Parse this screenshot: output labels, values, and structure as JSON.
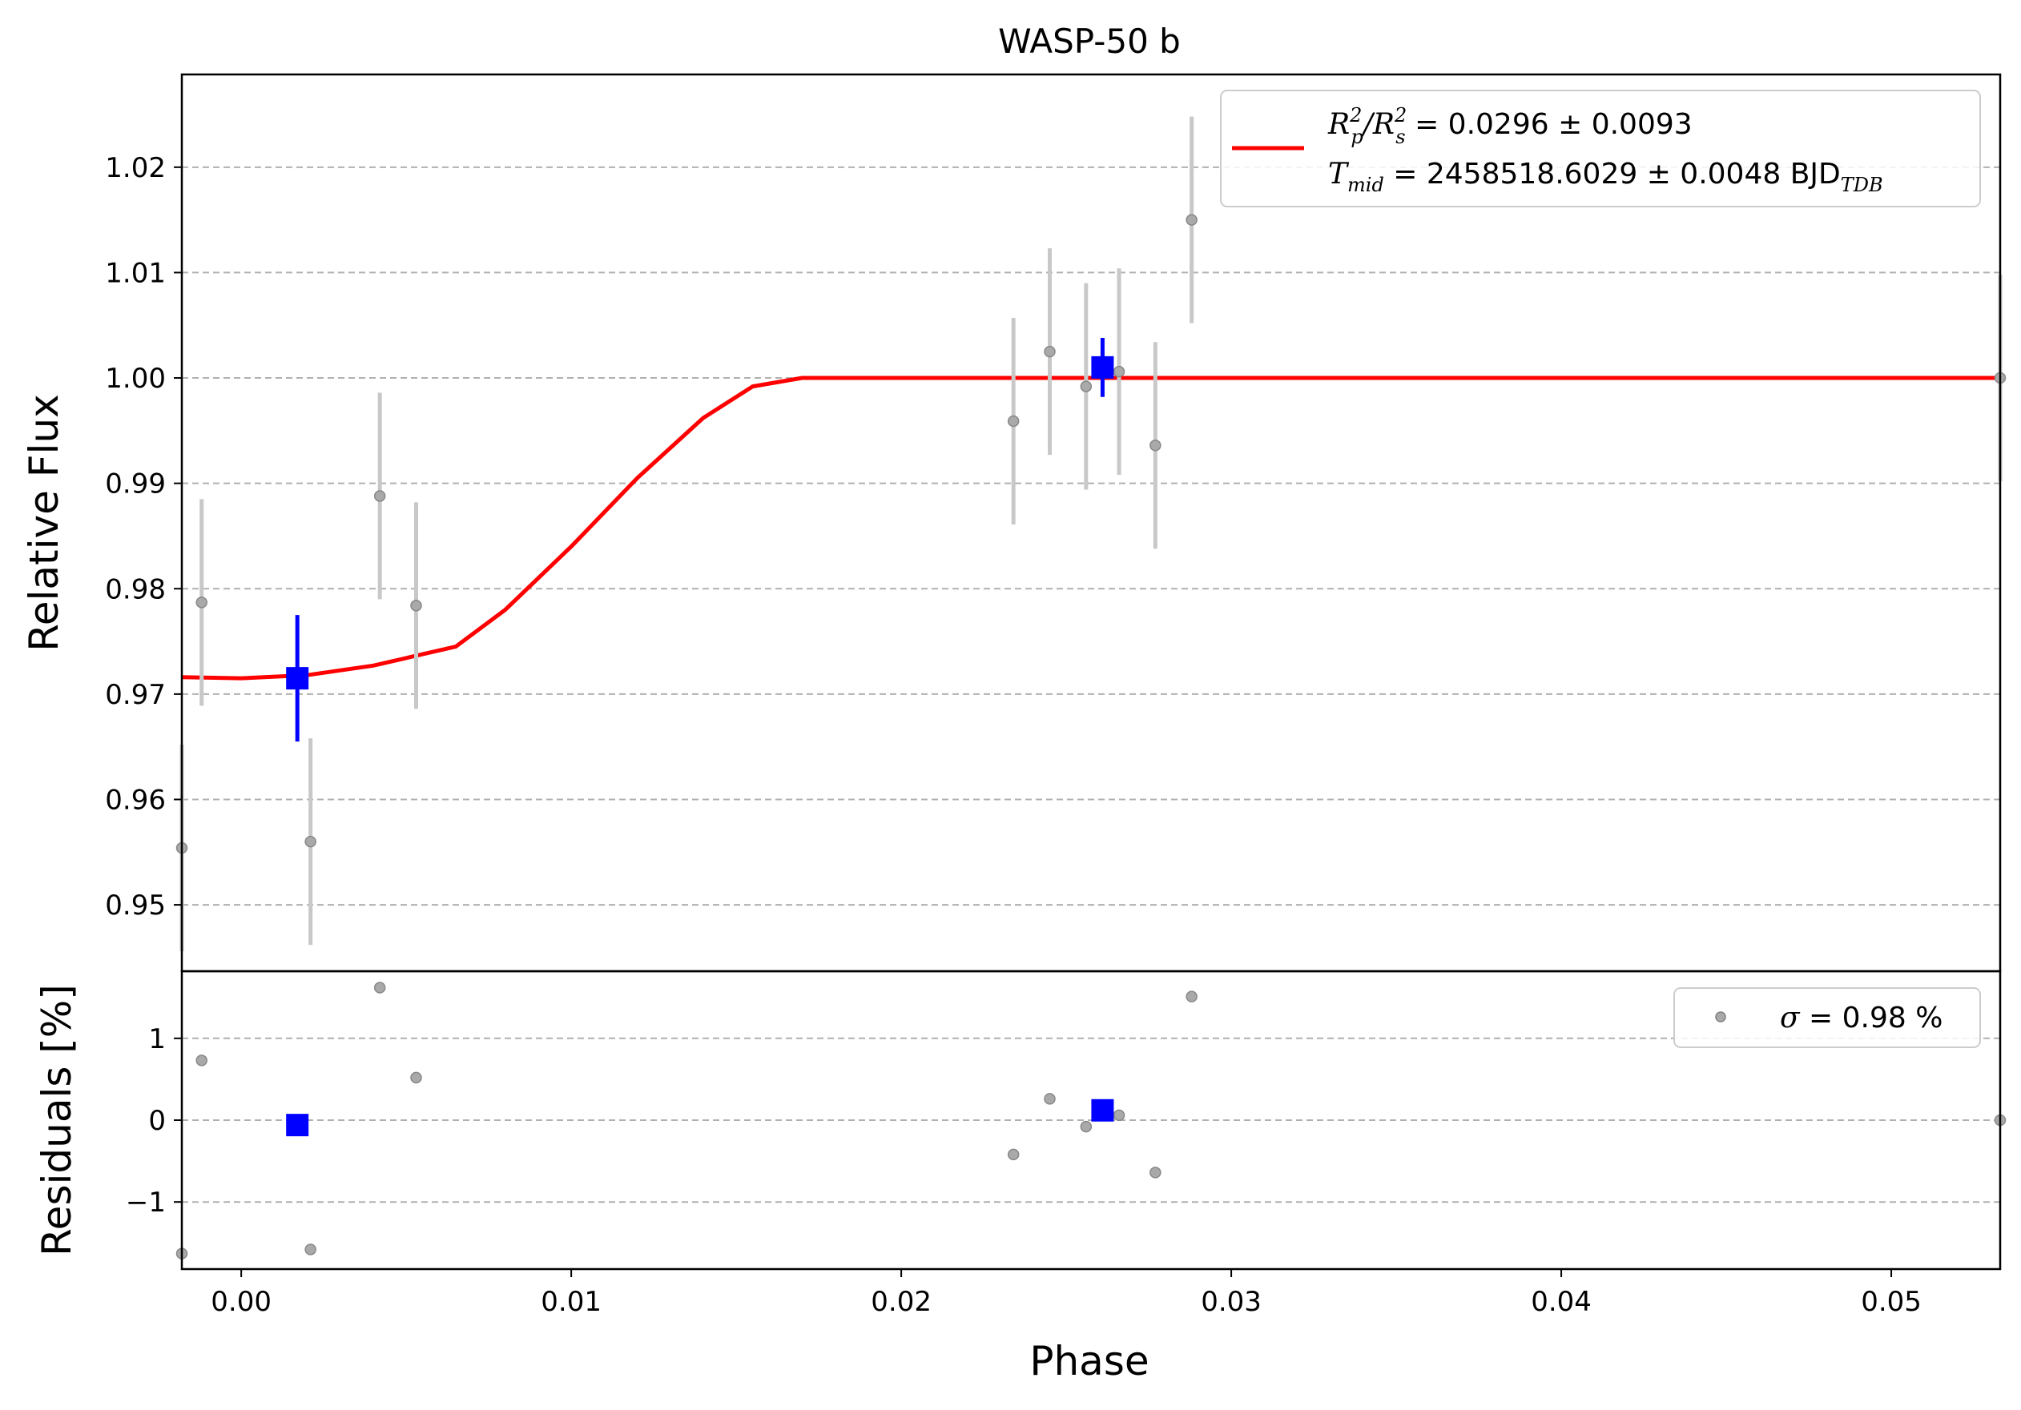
{
  "chart_data": [
    {
      "panel": "main",
      "type": "scatter",
      "title": "WASP-50 b",
      "xlabel": "Phase",
      "ylabel": "Relative Flux",
      "xlim": [
        -0.0018,
        0.0533
      ],
      "ylim": [
        0.9437,
        1.0288
      ],
      "grid": "horizontal dashed",
      "x_ticks": [
        "0.00",
        "0.01",
        "0.02",
        "0.03",
        "0.04",
        "0.05"
      ],
      "y_ticks": [
        {
          "v": 0.95,
          "label": "0.95"
        },
        {
          "v": 0.96,
          "label": "0.96"
        },
        {
          "v": 0.97,
          "label": "0.97"
        },
        {
          "v": 0.98,
          "label": "0.98"
        },
        {
          "v": 0.99,
          "label": "0.99"
        },
        {
          "v": 1.0,
          "label": "1.00"
        },
        {
          "v": 1.01,
          "label": "1.01"
        },
        {
          "v": 1.02,
          "label": "1.02"
        }
      ],
      "series": [
        {
          "kind": "unbinned",
          "color": "#a9a9a9",
          "points": [
            {
              "x": -0.0018,
              "y": 0.9554,
              "err": 0.0098
            },
            {
              "x": -0.0012,
              "y": 0.9787,
              "err": 0.0098
            },
            {
              "x": 0.0021,
              "y": 0.956,
              "err": 0.0098
            },
            {
              "x": 0.0042,
              "y": 0.9888,
              "err": 0.0098
            },
            {
              "x": 0.0053,
              "y": 0.9784,
              "err": 0.0098
            },
            {
              "x": 0.0234,
              "y": 0.9959,
              "err": 0.0098
            },
            {
              "x": 0.0245,
              "y": 1.0025,
              "err": 0.0098
            },
            {
              "x": 0.0256,
              "y": 0.9992,
              "err": 0.0098
            },
            {
              "x": 0.0266,
              "y": 1.0006,
              "err": 0.0098
            },
            {
              "x": 0.0277,
              "y": 0.9936,
              "err": 0.0098
            },
            {
              "x": 0.0288,
              "y": 1.015,
              "err": 0.0098
            },
            {
              "x": 0.0533,
              "y": 1.0,
              "err": 0.0098
            }
          ]
        },
        {
          "kind": "binned",
          "color": "#0000ff",
          "points": [
            {
              "x": 0.0017,
              "y": 0.9715,
              "err": 0.006
            },
            {
              "x": 0.0261,
              "y": 1.001,
              "err": 0.0028
            }
          ]
        },
        {
          "kind": "model",
          "color": "#ff0000",
          "x": [
            -0.0018,
            0.0,
            0.002,
            0.004,
            0.0065,
            0.008,
            0.01,
            0.012,
            0.014,
            0.0155,
            0.017,
            0.0533
          ],
          "y": [
            0.9716,
            0.9715,
            0.9718,
            0.9727,
            0.9745,
            0.978,
            0.984,
            0.9905,
            0.9962,
            0.9992,
            1.0,
            1.0
          ]
        }
      ],
      "legend": {
        "position": "top-right",
        "line1_lhs_a": "R",
        "line1_lhs_a_sup": "2",
        "line1_lhs_a_sub": "p",
        "line1_lhs_div": "/",
        "line1_lhs_b": "R",
        "line1_lhs_b_sup": "2",
        "line1_lhs_b_sub": "s",
        "line1_rhs": " = 0.0296 ± 0.0093",
        "line2_lhs": "T",
        "line2_lhs_sub": "mid",
        "line2_rhs": " = 2458518.6029 ± 0.0048 BJD",
        "line2_unit_sub": "TDB"
      }
    },
    {
      "panel": "residuals",
      "type": "scatter",
      "xlabel": "Phase",
      "ylabel": "Residuals [%]",
      "xlim": [
        -0.0018,
        0.0533
      ],
      "ylim": [
        -1.82,
        1.82
      ],
      "grid": "horizontal dashed",
      "y_ticks": [
        {
          "v": 1,
          "label": "1"
        },
        {
          "v": 0,
          "label": "0"
        },
        {
          "v": -1,
          "label": "−1"
        }
      ],
      "series": [
        {
          "kind": "unbinned",
          "color": "#a9a9a9",
          "points": [
            {
              "x": -0.0018,
              "y": -1.63
            },
            {
              "x": -0.0012,
              "y": 0.73
            },
            {
              "x": 0.0021,
              "y": -1.58
            },
            {
              "x": 0.0042,
              "y": 1.62
            },
            {
              "x": 0.0053,
              "y": 0.52
            },
            {
              "x": 0.0234,
              "y": -0.42
            },
            {
              "x": 0.0245,
              "y": 0.26
            },
            {
              "x": 0.0256,
              "y": -0.08
            },
            {
              "x": 0.0266,
              "y": 0.06
            },
            {
              "x": 0.0277,
              "y": -0.64
            },
            {
              "x": 0.0288,
              "y": 1.51
            },
            {
              "x": 0.0533,
              "y": 0.0
            }
          ]
        },
        {
          "kind": "binned",
          "color": "#0000ff",
          "points": [
            {
              "x": 0.0017,
              "y": -0.06
            },
            {
              "x": 0.0261,
              "y": 0.12
            }
          ]
        }
      ],
      "legend": {
        "position": "top-right",
        "sigma_symbol": "σ",
        "text": " = 0.98 %"
      }
    }
  ]
}
